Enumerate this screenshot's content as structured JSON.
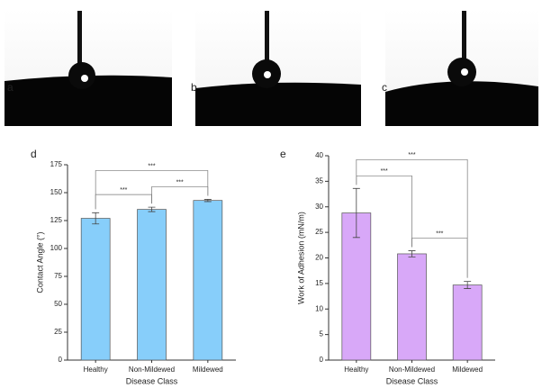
{
  "panel_labels": [
    "a",
    "b",
    "c",
    "d",
    "e"
  ],
  "chart_data": [
    {
      "type": "bar",
      "xlabel": "Disease Class",
      "ylabel": "Contact Angle (°)",
      "categories": [
        "Healthy",
        "Non-Mildewed",
        "Mildewed"
      ],
      "values": [
        127,
        135,
        143
      ],
      "errors": [
        5,
        2,
        1
      ],
      "color": "#87cefa",
      "ylim": [
        0,
        175
      ],
      "yticks": [
        0,
        25,
        50,
        75,
        100,
        125,
        150,
        175
      ],
      "brackets": [
        {
          "pair": [
            0,
            1
          ],
          "label": "***"
        },
        {
          "pair": [
            1,
            2
          ],
          "label": "***"
        },
        {
          "pair": [
            0,
            2
          ],
          "label": "***"
        }
      ]
    },
    {
      "type": "bar",
      "xlabel": "Disease Class",
      "ylabel": "Work of Adhesion (mN/m)",
      "categories": [
        "Healthy",
        "Non-Mildewed",
        "Mildewed"
      ],
      "values": [
        28.8,
        20.8,
        14.7
      ],
      "errors": [
        4.8,
        0.6,
        0.7
      ],
      "color": "#d8a8f8",
      "ylim": [
        0,
        40
      ],
      "yticks": [
        0,
        5,
        10,
        15,
        20,
        25,
        30,
        35,
        40
      ],
      "brackets": [
        {
          "pair": [
            0,
            1
          ],
          "label": "***"
        },
        {
          "pair": [
            1,
            2
          ],
          "label": "***"
        },
        {
          "pair": [
            0,
            2
          ],
          "label": "***"
        }
      ]
    }
  ]
}
